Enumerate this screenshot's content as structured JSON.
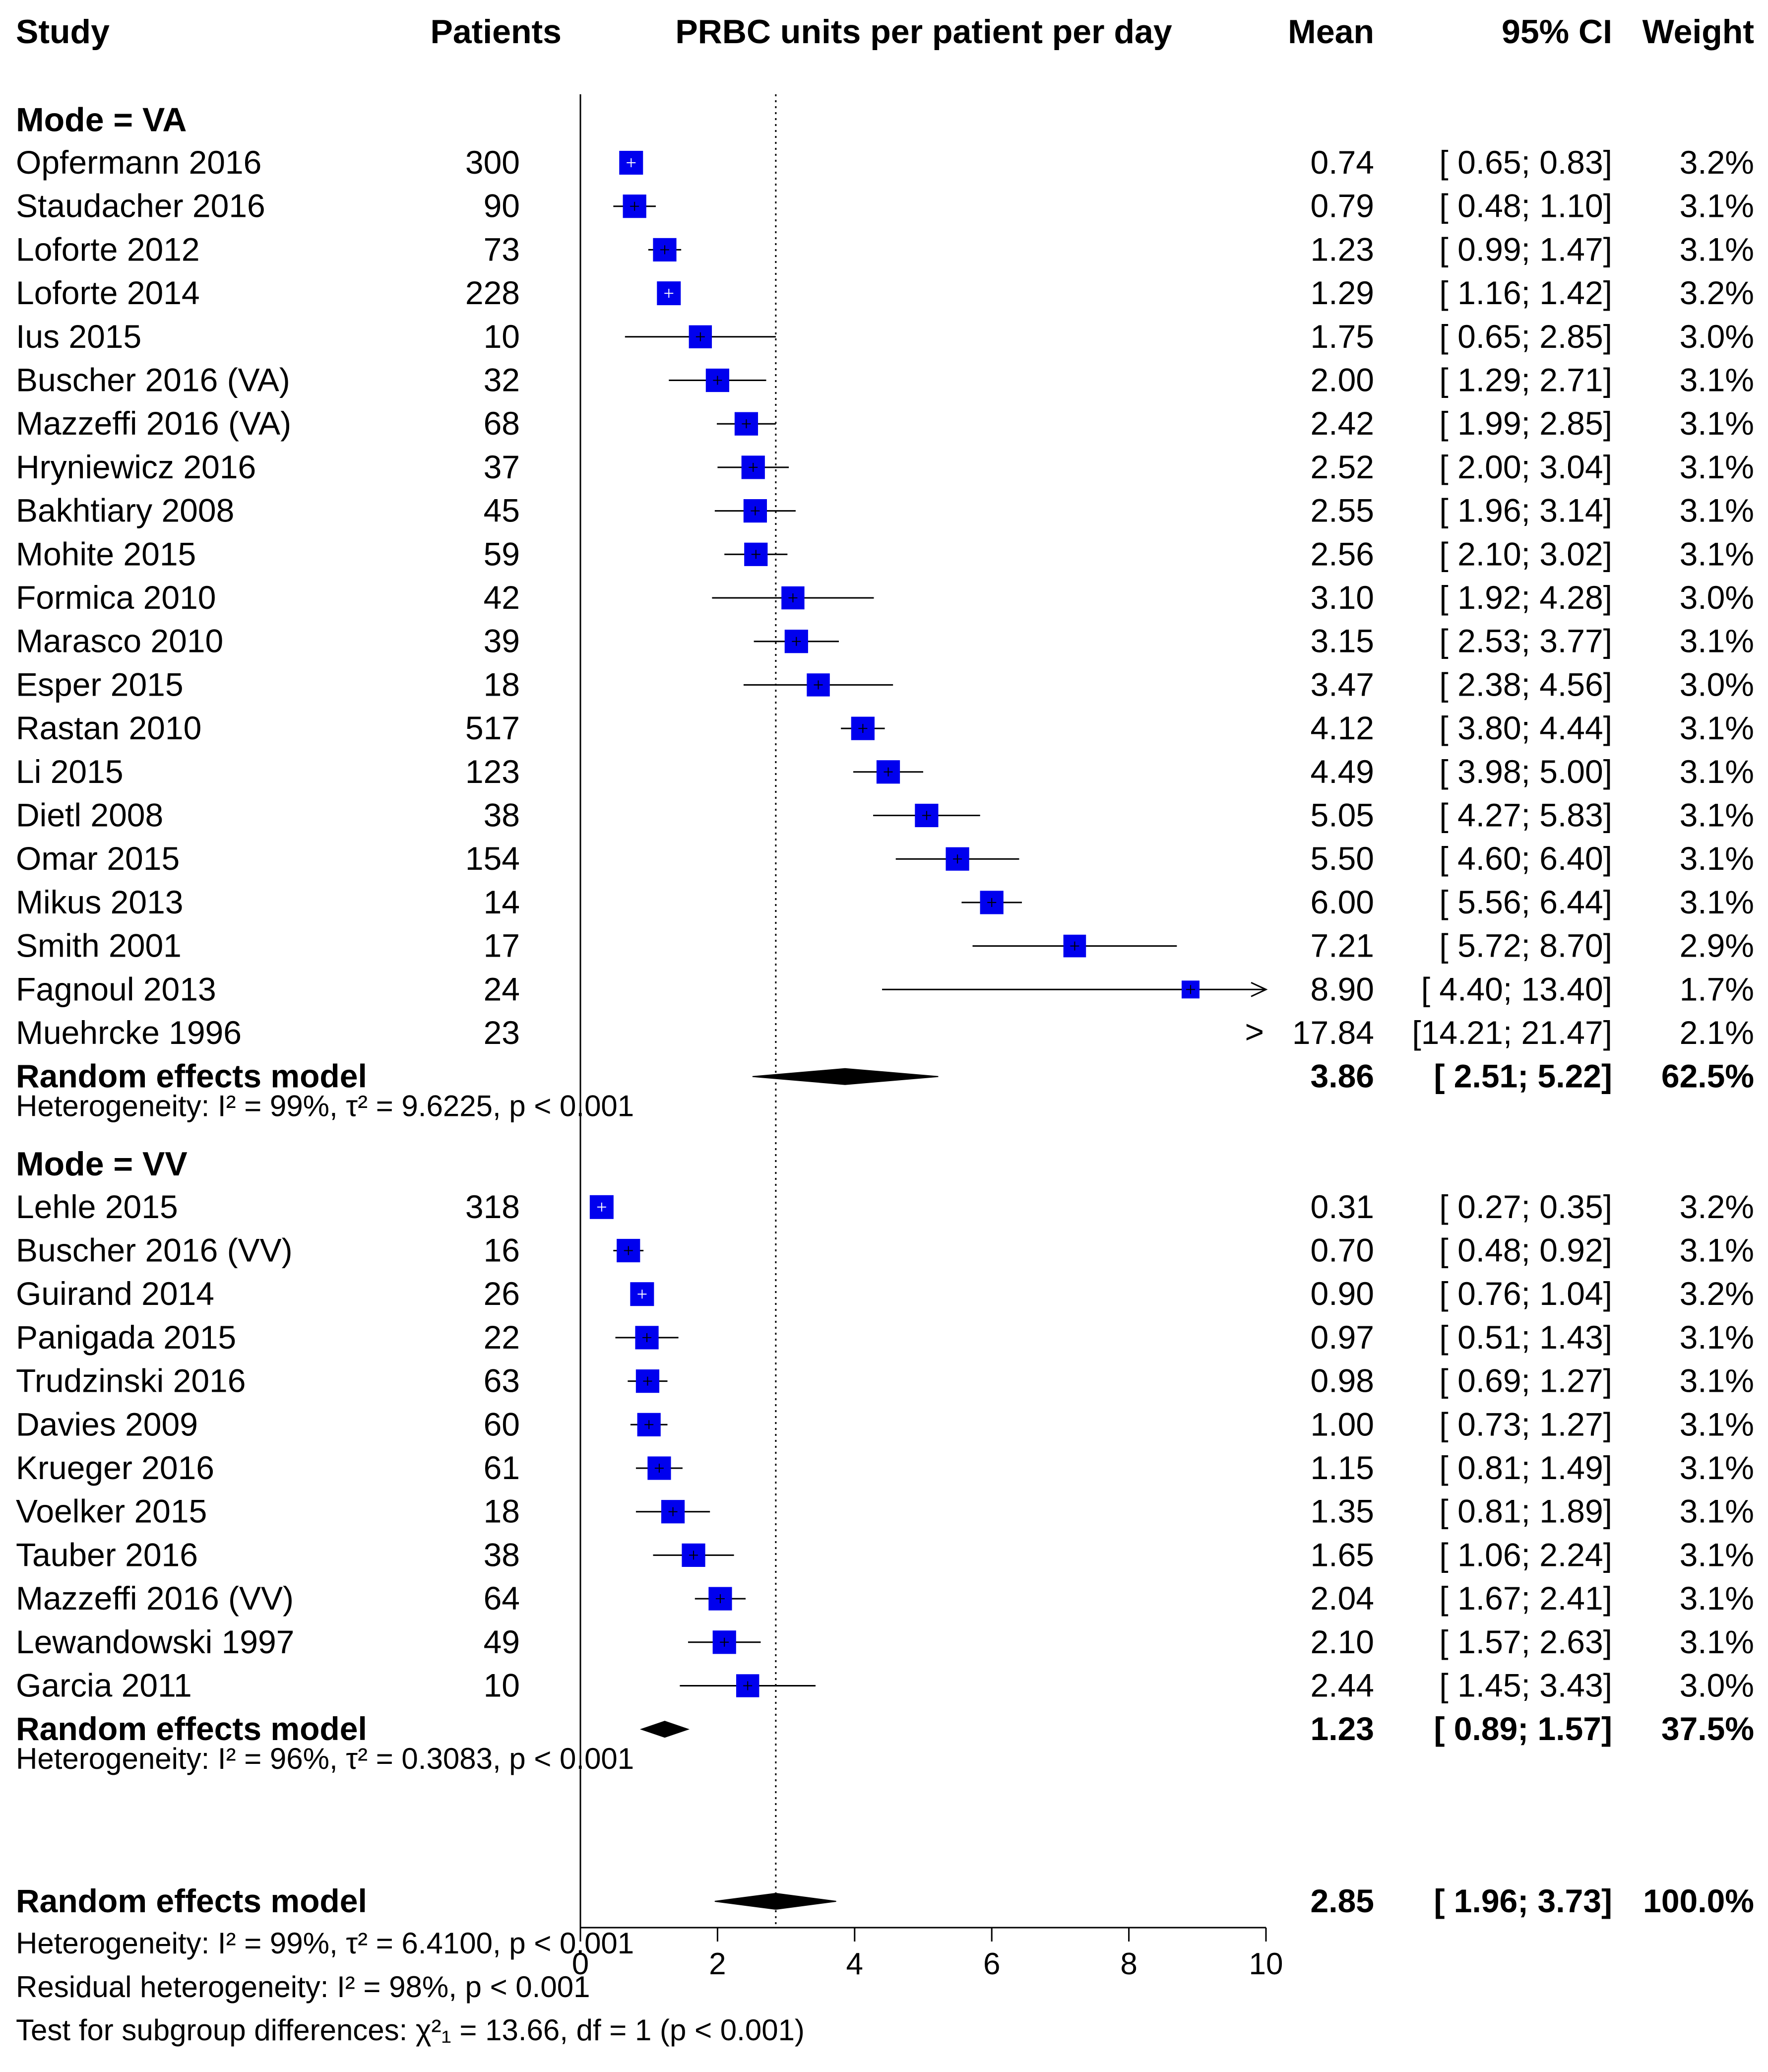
{
  "header": {
    "study": "Study",
    "patients": "Patients",
    "xlabel": "PRBC units per patient per day",
    "mean": "Mean",
    "ci": "95% CI",
    "weight": "Weight"
  },
  "colors": {
    "box": "#0000ee",
    "diamond": "#000000",
    "ref_line": "#000000"
  },
  "chart_data": {
    "type": "forest",
    "title": "PRBC units per patient per day",
    "xlabel": "PRBC units per patient per day",
    "xlim": [
      0,
      10
    ],
    "xticks": [
      "0",
      "2",
      "4",
      "6",
      "8",
      "10"
    ],
    "reference_line": 2.85,
    "groups": [
      {
        "label": "Mode = VA",
        "studies": [
          {
            "study": "Opfermann 2016",
            "patients": "300",
            "mean": 0.74,
            "lo": 0.65,
            "hi": 0.83,
            "mean_text": "0.74",
            "ci_text": "[ 0.65;  0.83]",
            "weight": "3.2%"
          },
          {
            "study": "Staudacher 2016",
            "patients": "90",
            "mean": 0.79,
            "lo": 0.48,
            "hi": 1.1,
            "mean_text": "0.79",
            "ci_text": "[ 0.48;  1.10]",
            "weight": "3.1%"
          },
          {
            "study": "Loforte 2012",
            "patients": "73",
            "mean": 1.23,
            "lo": 0.99,
            "hi": 1.47,
            "mean_text": "1.23",
            "ci_text": "[ 0.99;  1.47]",
            "weight": "3.1%"
          },
          {
            "study": "Loforte 2014",
            "patients": "228",
            "mean": 1.29,
            "lo": 1.16,
            "hi": 1.42,
            "mean_text": "1.29",
            "ci_text": "[ 1.16;  1.42]",
            "weight": "3.2%"
          },
          {
            "study": "Ius 2015",
            "patients": "10",
            "mean": 1.75,
            "lo": 0.65,
            "hi": 2.85,
            "mean_text": "1.75",
            "ci_text": "[ 0.65;  2.85]",
            "weight": "3.0%"
          },
          {
            "study": "Buscher 2016 (VA)",
            "patients": "32",
            "mean": 2.0,
            "lo": 1.29,
            "hi": 2.71,
            "mean_text": "2.00",
            "ci_text": "[ 1.29;  2.71]",
            "weight": "3.1%"
          },
          {
            "study": "Mazzeffi 2016 (VA)",
            "patients": "68",
            "mean": 2.42,
            "lo": 1.99,
            "hi": 2.85,
            "mean_text": "2.42",
            "ci_text": "[ 1.99;  2.85]",
            "weight": "3.1%"
          },
          {
            "study": "Hryniewicz 2016",
            "patients": "37",
            "mean": 2.52,
            "lo": 2.0,
            "hi": 3.04,
            "mean_text": "2.52",
            "ci_text": "[ 2.00;  3.04]",
            "weight": "3.1%"
          },
          {
            "study": "Bakhtiary 2008",
            "patients": "45",
            "mean": 2.55,
            "lo": 1.96,
            "hi": 3.14,
            "mean_text": "2.55",
            "ci_text": "[ 1.96;  3.14]",
            "weight": "3.1%"
          },
          {
            "study": "Mohite 2015",
            "patients": "59",
            "mean": 2.56,
            "lo": 2.1,
            "hi": 3.02,
            "mean_text": "2.56",
            "ci_text": "[ 2.10;  3.02]",
            "weight": "3.1%"
          },
          {
            "study": "Formica 2010",
            "patients": "42",
            "mean": 3.1,
            "lo": 1.92,
            "hi": 4.28,
            "mean_text": "3.10",
            "ci_text": "[ 1.92;  4.28]",
            "weight": "3.0%"
          },
          {
            "study": "Marasco 2010",
            "patients": "39",
            "mean": 3.15,
            "lo": 2.53,
            "hi": 3.77,
            "mean_text": "3.15",
            "ci_text": "[ 2.53;  3.77]",
            "weight": "3.1%"
          },
          {
            "study": "Esper 2015",
            "patients": "18",
            "mean": 3.47,
            "lo": 2.38,
            "hi": 4.56,
            "mean_text": "3.47",
            "ci_text": "[ 2.38;  4.56]",
            "weight": "3.0%"
          },
          {
            "study": "Rastan 2010",
            "patients": "517",
            "mean": 4.12,
            "lo": 3.8,
            "hi": 4.44,
            "mean_text": "4.12",
            "ci_text": "[ 3.80;  4.44]",
            "weight": "3.1%"
          },
          {
            "study": "Li 2015",
            "patients": "123",
            "mean": 4.49,
            "lo": 3.98,
            "hi": 5.0,
            "mean_text": "4.49",
            "ci_text": "[ 3.98;  5.00]",
            "weight": "3.1%"
          },
          {
            "study": "Dietl 2008",
            "patients": "38",
            "mean": 5.05,
            "lo": 4.27,
            "hi": 5.83,
            "mean_text": "5.05",
            "ci_text": "[ 4.27;  5.83]",
            "weight": "3.1%"
          },
          {
            "study": "Omar 2015",
            "patients": "154",
            "mean": 5.5,
            "lo": 4.6,
            "hi": 6.4,
            "mean_text": "5.50",
            "ci_text": "[ 4.60;  6.40]",
            "weight": "3.1%"
          },
          {
            "study": "Mikus 2013",
            "patients": "14",
            "mean": 6.0,
            "lo": 5.56,
            "hi": 6.44,
            "mean_text": "6.00",
            "ci_text": "[ 5.56;  6.44]",
            "weight": "3.1%"
          },
          {
            "study": "Smith 2001",
            "patients": "17",
            "mean": 7.21,
            "lo": 5.72,
            "hi": 8.7,
            "mean_text": "7.21",
            "ci_text": "[ 5.72;  8.70]",
            "weight": "2.9%"
          },
          {
            "study": "Fagnoul 2013",
            "patients": "24",
            "mean": 8.9,
            "lo": 4.4,
            "hi": 13.4,
            "mean_text": "8.90",
            "ci_text": "[ 4.40; 13.40]",
            "weight": "1.7%"
          },
          {
            "study": "Muehrcke 1996",
            "patients": "23",
            "mean": 17.84,
            "lo": 14.21,
            "hi": 21.47,
            "mean_text": "17.84",
            "ci_text": "[14.21; 21.47]",
            "weight": "2.1%"
          }
        ],
        "pooled": {
          "label": "Random effects model",
          "mean": 3.86,
          "lo": 2.51,
          "hi": 5.22,
          "mean_text": "3.86",
          "ci_text": "[ 2.51;  5.22]",
          "weight": "62.5%"
        },
        "heterogeneity": "Heterogeneity: I² = 99%, τ² = 9.6225, p < 0.001"
      },
      {
        "label": "Mode = VV",
        "studies": [
          {
            "study": "Lehle 2015",
            "patients": "318",
            "mean": 0.31,
            "lo": 0.27,
            "hi": 0.35,
            "mean_text": "0.31",
            "ci_text": "[ 0.27;  0.35]",
            "weight": "3.2%"
          },
          {
            "study": "Buscher 2016 (VV)",
            "patients": "16",
            "mean": 0.7,
            "lo": 0.48,
            "hi": 0.92,
            "mean_text": "0.70",
            "ci_text": "[ 0.48;  0.92]",
            "weight": "3.1%"
          },
          {
            "study": "Guirand 2014",
            "patients": "26",
            "mean": 0.9,
            "lo": 0.76,
            "hi": 1.04,
            "mean_text": "0.90",
            "ci_text": "[ 0.76;  1.04]",
            "weight": "3.2%"
          },
          {
            "study": "Panigada 2015",
            "patients": "22",
            "mean": 0.97,
            "lo": 0.51,
            "hi": 1.43,
            "mean_text": "0.97",
            "ci_text": "[ 0.51;  1.43]",
            "weight": "3.1%"
          },
          {
            "study": "Trudzinski 2016",
            "patients": "63",
            "mean": 0.98,
            "lo": 0.69,
            "hi": 1.27,
            "mean_text": "0.98",
            "ci_text": "[ 0.69;  1.27]",
            "weight": "3.1%"
          },
          {
            "study": "Davies 2009",
            "patients": "60",
            "mean": 1.0,
            "lo": 0.73,
            "hi": 1.27,
            "mean_text": "1.00",
            "ci_text": "[ 0.73;  1.27]",
            "weight": "3.1%"
          },
          {
            "study": "Krueger 2016",
            "patients": "61",
            "mean": 1.15,
            "lo": 0.81,
            "hi": 1.49,
            "mean_text": "1.15",
            "ci_text": "[ 0.81;  1.49]",
            "weight": "3.1%"
          },
          {
            "study": "Voelker 2015",
            "patients": "18",
            "mean": 1.35,
            "lo": 0.81,
            "hi": 1.89,
            "mean_text": "1.35",
            "ci_text": "[ 0.81;  1.89]",
            "weight": "3.1%"
          },
          {
            "study": "Tauber 2016",
            "patients": "38",
            "mean": 1.65,
            "lo": 1.06,
            "hi": 2.24,
            "mean_text": "1.65",
            "ci_text": "[ 1.06;  2.24]",
            "weight": "3.1%"
          },
          {
            "study": "Mazzeffi 2016 (VV)",
            "patients": "64",
            "mean": 2.04,
            "lo": 1.67,
            "hi": 2.41,
            "mean_text": "2.04",
            "ci_text": "[ 1.67;  2.41]",
            "weight": "3.1%"
          },
          {
            "study": "Lewandowski 1997",
            "patients": "49",
            "mean": 2.1,
            "lo": 1.57,
            "hi": 2.63,
            "mean_text": "2.10",
            "ci_text": "[ 1.57;  2.63]",
            "weight": "3.1%"
          },
          {
            "study": "Garcia 2011",
            "patients": "10",
            "mean": 2.44,
            "lo": 1.45,
            "hi": 3.43,
            "mean_text": "2.44",
            "ci_text": "[ 1.45;  3.43]",
            "weight": "3.0%"
          }
        ],
        "pooled": {
          "label": "Random effects model",
          "mean": 1.23,
          "lo": 0.89,
          "hi": 1.57,
          "mean_text": "1.23",
          "ci_text": "[ 0.89;  1.57]",
          "weight": "37.5%"
        },
        "heterogeneity": "Heterogeneity: I² = 96%, τ² = 0.3083, p < 0.001"
      }
    ],
    "overall": {
      "label": "Random effects model",
      "mean": 2.85,
      "lo": 1.96,
      "hi": 3.73,
      "mean_text": "2.85",
      "ci_text": "[ 1.96;  3.73]",
      "weight": "100.0%"
    },
    "footer": [
      "Heterogeneity: I² = 99%, τ² = 6.4100, p < 0.001",
      "Residual heterogeneity: I² = 98%, p < 0.001",
      "Test for subgroup differences: χ²₁ = 13.66, df = 1 (p < 0.001)"
    ]
  }
}
